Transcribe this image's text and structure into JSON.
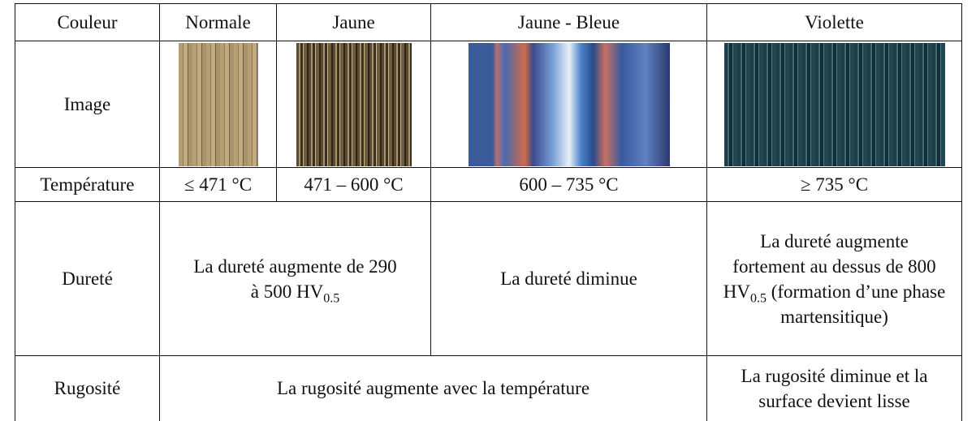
{
  "table": {
    "header": [
      "Couleur",
      "Normale",
      "Jaune",
      "Jaune - Bleue",
      "Violette"
    ],
    "rows": [
      {
        "label": "Image"
      },
      {
        "label": "Température",
        "cells": [
          "≤ 471 °C",
          "471 – 600 °C",
          "600 – 735 °C",
          "≥ 735 °C"
        ]
      },
      {
        "label": "Dureté",
        "cells": [
          {
            "text": "La dureté augmente de 290 à 500 HV",
            "sub": "0.5"
          },
          {
            "text": "La dureté diminue"
          },
          {
            "text": "La dureté augmente fortement au dessus de 800 HV",
            "sub": "0.5",
            "after": "(formation d’une phase martensitique)"
          }
        ]
      },
      {
        "label": "Rugosité",
        "cells": [
          "La rugosité augmente avec la température",
          "La rugosité diminue et la surface devient lisse"
        ]
      }
    ]
  }
}
